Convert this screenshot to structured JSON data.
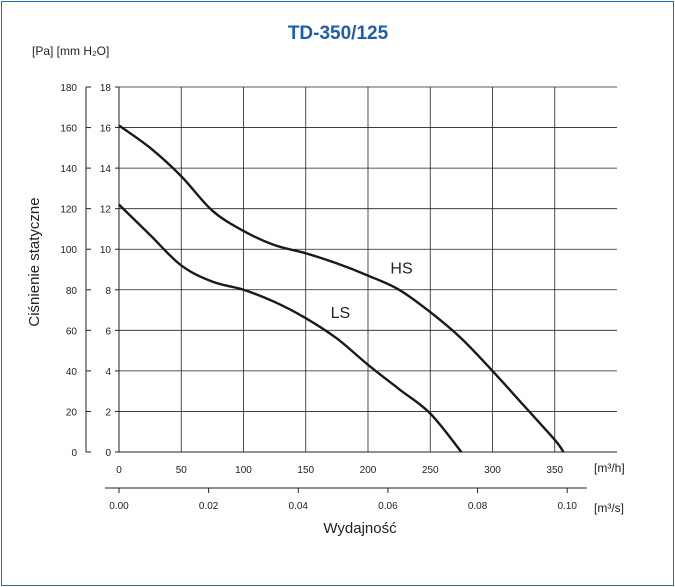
{
  "chart_data": {
    "type": "line",
    "title": "TD-350/125",
    "ylabel": "Ciśnienie statyczne",
    "xlabel": "Wydajność",
    "y_units_label": "[Pa] [mm H₂O]",
    "x_unit_primary": "[m³/h]",
    "x_unit_secondary": "[m³/s]",
    "x_primary_ticks": [
      "0",
      "50",
      "100",
      "150",
      "200",
      "250",
      "300",
      "350"
    ],
    "x_secondary_ticks": [
      "0.00",
      "0.02",
      "0.04",
      "0.06",
      "0.08",
      "0.10"
    ],
    "y_pa_ticks": [
      "0",
      "20",
      "40",
      "60",
      "80",
      "100",
      "120",
      "140",
      "160",
      "180"
    ],
    "y_mm_ticks": [
      "0",
      "2",
      "4",
      "6",
      "8",
      "10",
      "12",
      "14",
      "16",
      "18"
    ],
    "xlim": [
      0,
      400
    ],
    "ylim": [
      0,
      180
    ],
    "grid": true,
    "series": [
      {
        "name": "HS",
        "x": [
          0,
          25,
          50,
          75,
          100,
          125,
          150,
          175,
          200,
          225,
          250,
          275,
          300,
          325,
          350,
          357
        ],
        "y": [
          161,
          150,
          136,
          119,
          109,
          102,
          98,
          93,
          87,
          80,
          69,
          56,
          40,
          23,
          6,
          0
        ]
      },
      {
        "name": "LS",
        "x": [
          0,
          25,
          50,
          75,
          100,
          125,
          150,
          175,
          200,
          225,
          250,
          275
        ],
        "y": [
          122,
          107,
          92,
          84,
          80,
          74,
          66,
          56,
          43,
          31,
          19,
          0
        ]
      }
    ]
  }
}
